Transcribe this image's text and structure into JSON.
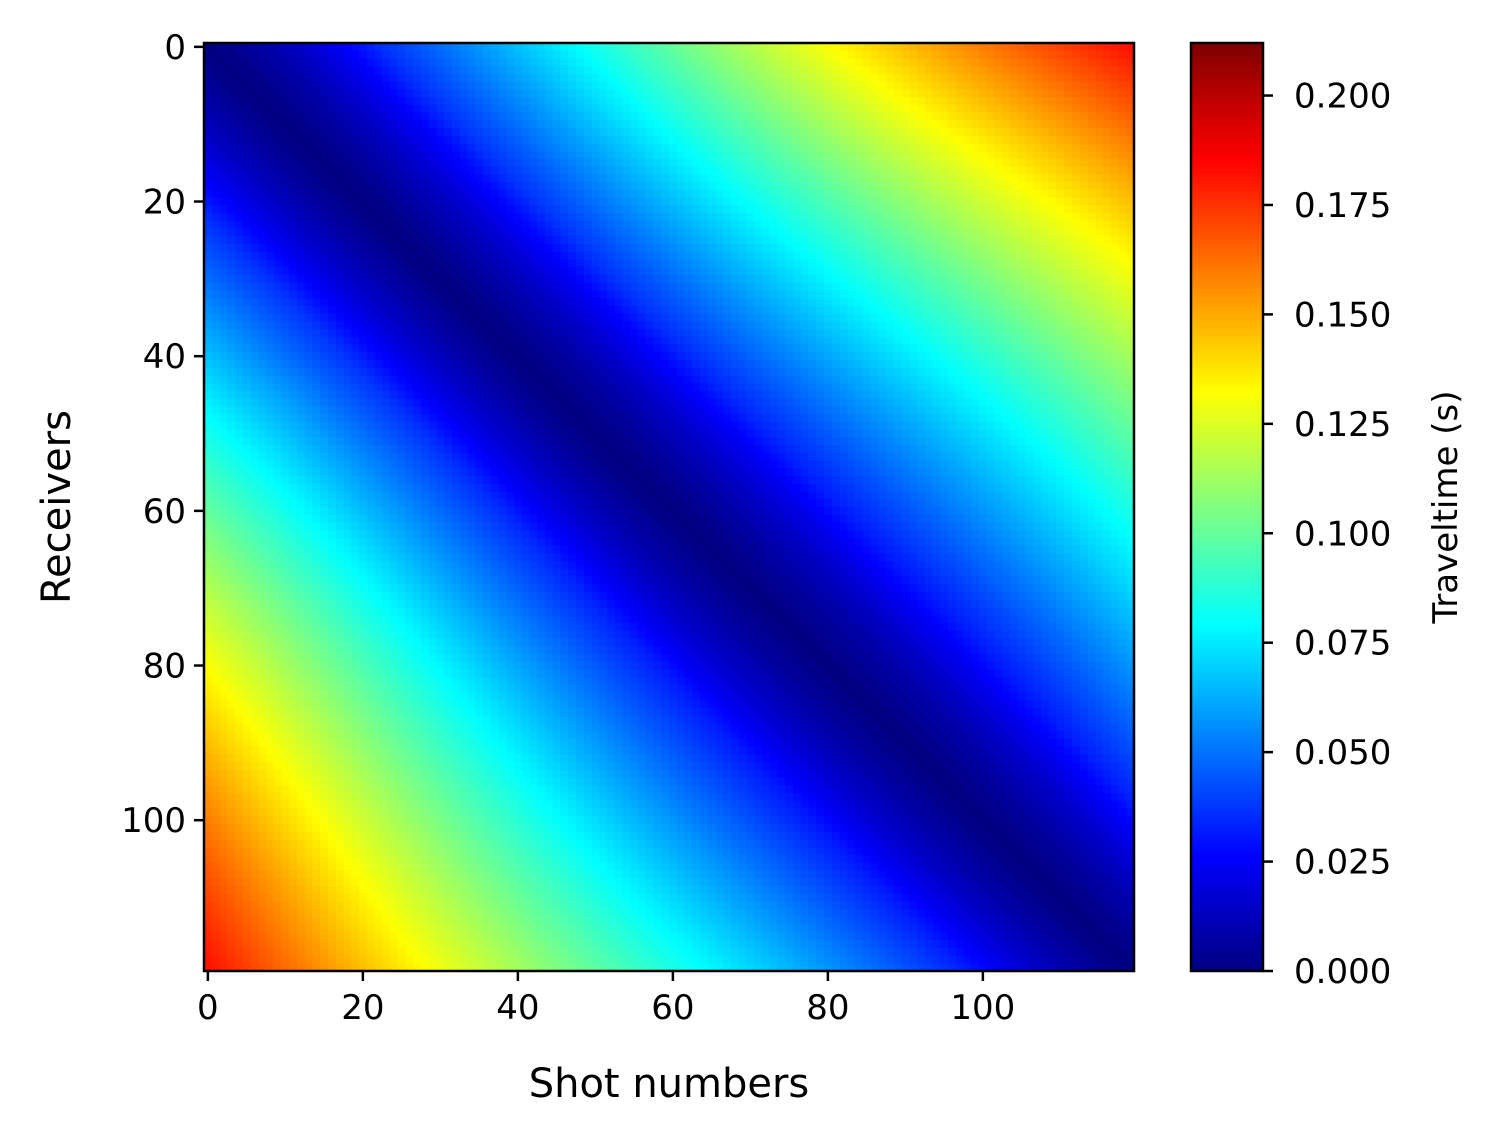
{
  "chart_data": {
    "type": "heatmap",
    "title": "",
    "xlabel": "Shot numbers",
    "ylabel": "Receivers",
    "colorbar_label": "Traveltime (s)",
    "colormap": "jet",
    "n_shots": 120,
    "n_receivers": 120,
    "xlim": [
      -0.5,
      119.5
    ],
    "ylim": [
      119.5,
      -0.5
    ],
    "x_ticks": [
      0,
      20,
      40,
      60,
      80,
      100
    ],
    "y_ticks": [
      0,
      20,
      40,
      60,
      80,
      100
    ],
    "x_tick_labels": [
      "0",
      "20",
      "40",
      "60",
      "80",
      "100"
    ],
    "y_tick_labels": [
      "0",
      "20",
      "40",
      "60",
      "80",
      "100"
    ],
    "color_range": [
      0.0,
      0.212
    ],
    "colorbar_ticks": [
      0.0,
      0.025,
      0.05,
      0.075,
      0.1,
      0.125,
      0.15,
      0.175,
      0.2
    ],
    "colorbar_tick_labels": [
      "0.000",
      "0.025",
      "0.050",
      "0.075",
      "0.100",
      "0.125",
      "0.150",
      "0.175",
      "0.200"
    ],
    "value_description_note_omitted": true,
    "sample_values": [
      {
        "shot": 0,
        "receiver": 0,
        "traveltime": 0.0
      },
      {
        "shot": 119,
        "receiver": 119,
        "traveltime": 0.0
      },
      {
        "shot": 119,
        "receiver": 0,
        "traveltime": 0.205
      },
      {
        "shot": 0,
        "receiver": 119,
        "traveltime": 0.205
      },
      {
        "shot": 60,
        "receiver": 60,
        "traveltime": 0.0
      },
      {
        "shot": 60,
        "receiver": 20,
        "traveltime": 0.1
      },
      {
        "shot": 20,
        "receiver": 60,
        "traveltime": 0.11
      },
      {
        "shot": 100,
        "receiver": 20,
        "traveltime": 0.16
      },
      {
        "shot": 20,
        "receiver": 100,
        "traveltime": 0.175
      }
    ]
  }
}
